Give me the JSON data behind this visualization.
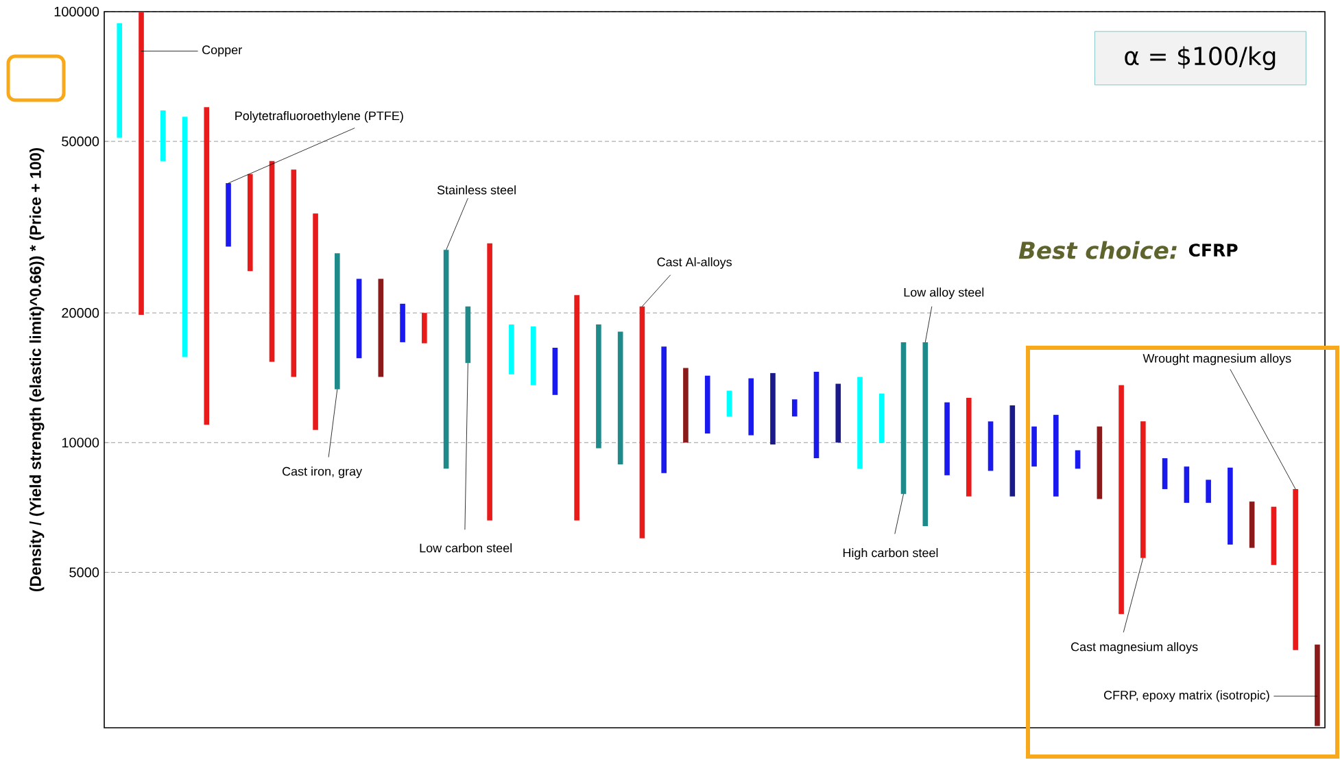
{
  "chart_data": {
    "type": "bar",
    "ylabel": "(Density / (Yield strength (elastic limit)^0.66)) * (Price + 100)",
    "categories": [
      null,
      null,
      null,
      null,
      null,
      null,
      null,
      null,
      null,
      null,
      null,
      null,
      null,
      null,
      null,
      null,
      null,
      null,
      null,
      null,
      null,
      null,
      null,
      null,
      null,
      null,
      null,
      null,
      null,
      null,
      null,
      null,
      null,
      null,
      null,
      null,
      null,
      null,
      null,
      null,
      null,
      null,
      null,
      null,
      null,
      null,
      null,
      null,
      null,
      null,
      null,
      null,
      null,
      null,
      null,
      null
    ],
    "base": [
      51000,
      19800,
      45000,
      15800,
      11000,
      28500,
      25000,
      15400,
      14200,
      10700,
      13300,
      15700,
      14200,
      17100,
      17000,
      8700,
      15300,
      6600,
      14400,
      13600,
      12900,
      6600,
      9700,
      8900,
      6000,
      8500,
      10000,
      10500,
      11500,
      10400,
      9900,
      11500,
      9200,
      10000,
      8700,
      10000,
      7600,
      6400,
      8400,
      7500,
      8600,
      7500,
      8800,
      7500,
      8700,
      7400,
      4000,
      5400,
      7800,
      7250,
      7250,
      5800,
      5700,
      5200,
      3300,
      2200
    ],
    "values": [
      43000,
      80200,
      14000,
      41200,
      49000,
      11500,
      17000,
      29600,
      28800,
      23300,
      14200,
      8300,
      9800,
      3900,
      3000,
      19300,
      5400,
      22400,
      4400,
      5000,
      3700,
      15400,
      9100,
      9200,
      14700,
      8200,
      4900,
      3800,
      1700,
      3700,
      4600,
      1100,
      5400,
      3700,
      5500,
      3000,
      9500,
      10700,
      4000,
      5200,
      2600,
      4700,
      2100,
      4100,
      900,
      3500,
      9600,
      5800,
      1400,
      1550,
      950,
      2950,
      1600,
      1900,
      4500,
      1200
    ],
    "colors": [
      "#00ffff",
      "#e81a1a",
      "#00ffff",
      "#00ffff",
      "#e81a1a",
      "#1a1aee",
      "#e81a1a",
      "#e81a1a",
      "#e81a1a",
      "#e81a1a",
      "#1f8a8a",
      "#1a1aee",
      "#8b1a1a",
      "#1a1aee",
      "#e81a1a",
      "#1f8a8a",
      "#1f8a8a",
      "#e81a1a",
      "#00ffff",
      "#00ffff",
      "#1a1aee",
      "#e81a1a",
      "#1f8a8a",
      "#1f8a8a",
      "#e81a1a",
      "#1a1aee",
      "#8b1a1a",
      "#1a1aee",
      "#00ffff",
      "#1a1aee",
      "#1a1a8b",
      "#1a1aee",
      "#1a1aee",
      "#1a1a8b",
      "#00ffff",
      "#00ffff",
      "#1f8a8a",
      "#1f8a8a",
      "#1a1aee",
      "#e81a1a",
      "#1a1aee",
      "#1a1a8b",
      "#1a1aee",
      "#1a1aee",
      "#1a1aee",
      "#8b1a1a",
      "#e81a1a",
      "#e81a1a",
      "#1a1aee",
      "#1a1aee",
      "#1a1aee",
      "#1a1aee",
      "#8b1a1a",
      "#e81a1a",
      "#e81a1a",
      "#8b1a1a"
    ],
    "ylim": [
      2180,
      100000
    ],
    "yticks": [
      5000,
      10000,
      20000,
      50000,
      100000
    ],
    "log": "y",
    "grid": "y",
    "annotations": [
      "Copper",
      "Polytetrafluoroethylene (PTFE)",
      "Stainless steel",
      "Cast Al-alloys",
      "Low alloy steel",
      "Cast iron, gray",
      "Low carbon steel",
      "High carbon steel",
      "Wrought magnesium alloys",
      "Cast magnesium alloys",
      "CFRP, epoxy matrix (isotropic)",
      "α = $100/kg",
      "Best choice:",
      "CFRP"
    ]
  }
}
